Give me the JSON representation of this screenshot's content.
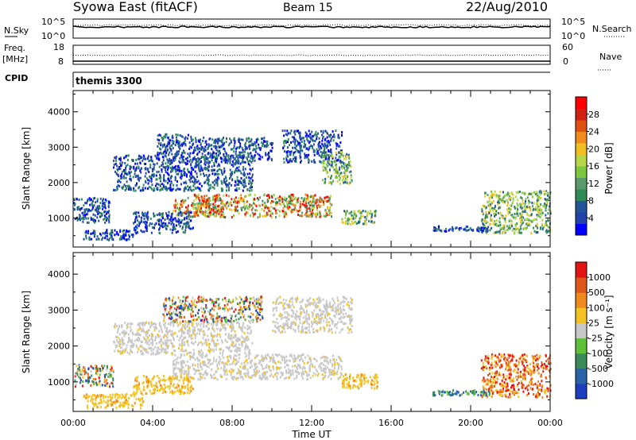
{
  "header": {
    "station": "Syowa East (fitACF)",
    "beam": "Beam 15",
    "date": "22/Aug/2010"
  },
  "status_panels": {
    "nsky_label": "N.Sky",
    "nsky_ticks": [
      "10^5",
      "10^0"
    ],
    "nsearch_label": "N.Search",
    "nsearch_ticks": [
      "10^5",
      "10^0"
    ],
    "freq_label_1": "Freq.",
    "freq_label_2": "[MHz]",
    "freq_ticks": [
      "18",
      "8"
    ],
    "nave_label": "Nave",
    "nave_ticks": [
      "60",
      "0"
    ],
    "cpid_label": "CPID",
    "cpid_value": "themis 3300"
  },
  "chart_data": [
    {
      "type": "heatmap",
      "name": "power",
      "ylabel": "Slant Range [km]",
      "yticks": [
        "4000",
        "3000",
        "2000",
        "1000"
      ],
      "ylim": [
        180,
        4600
      ],
      "xlabel": "Time UT",
      "xticks": [
        "00:00",
        "04:00",
        "08:00",
        "12:00",
        "16:00",
        "20:00",
        "00:00"
      ],
      "xlim_hours": [
        0,
        24
      ],
      "colorbar": {
        "label": "Power [dB]",
        "ticks": [
          "28",
          "24",
          "20",
          "16",
          "12",
          "8",
          "4"
        ],
        "colors": [
          "#0000ff",
          "#2244aa",
          "#22559a",
          "#2e8b57",
          "#5a9a6a",
          "#7cc840",
          "#b8d84a",
          "#f0c020",
          "#f08c1a",
          "#e05010",
          "#d02010",
          "#ff0000"
        ]
      },
      "regions": [
        {
          "t": [
            6.0,
            13.0
          ],
          "r": [
            1050,
            1700
          ],
          "color_bias": "high"
        },
        {
          "t": [
            5.0,
            7.5
          ],
          "r": [
            1100,
            1600
          ],
          "color_bias": "high"
        },
        {
          "t": [
            2.0,
            9.0
          ],
          "r": [
            1800,
            2800
          ],
          "color_bias": "low"
        },
        {
          "t": [
            4.2,
            6.0
          ],
          "r": [
            2800,
            3400
          ],
          "color_bias": "low"
        },
        {
          "t": [
            6.0,
            10.0
          ],
          "r": [
            2600,
            3300
          ],
          "color_bias": "low"
        },
        {
          "t": [
            10.5,
            13.5
          ],
          "r": [
            2600,
            3500
          ],
          "color_bias": "low"
        },
        {
          "t": [
            12.5,
            14.0
          ],
          "r": [
            2000,
            2900
          ],
          "color_bias": "mid"
        },
        {
          "t": [
            0.0,
            1.8
          ],
          "r": [
            900,
            1600
          ],
          "color_bias": "low"
        },
        {
          "t": [
            0.5,
            3.0
          ],
          "r": [
            400,
            700
          ],
          "color_bias": "low"
        },
        {
          "t": [
            3.0,
            6.0
          ],
          "r": [
            600,
            1200
          ],
          "color_bias": "low"
        },
        {
          "t": [
            13.5,
            15.2
          ],
          "r": [
            850,
            1250
          ],
          "color_bias": "mid"
        },
        {
          "t": [
            20.5,
            24.0
          ],
          "r": [
            600,
            1800
          ],
          "color_bias": "mid"
        },
        {
          "t": [
            18.0,
            21.0
          ],
          "r": [
            650,
            800
          ],
          "color_bias": "low"
        }
      ]
    },
    {
      "type": "heatmap",
      "name": "velocity",
      "ylabel": "Slant Range [km]",
      "yticks": [
        "4000",
        "3000",
        "2000",
        "1000"
      ],
      "ylim": [
        180,
        4600
      ],
      "xlabel": "Time UT",
      "xticks": [
        "00:00",
        "04:00",
        "08:00",
        "12:00",
        "16:00",
        "20:00",
        "00:00"
      ],
      "xlim_hours": [
        0,
        24
      ],
      "colorbar": {
        "label": "Velocity [m s⁻¹]",
        "ticks": [
          "1000",
          "500",
          "100",
          "25",
          "-25",
          "-100",
          "-500",
          "-1000"
        ],
        "colors": [
          "#1d3fbf",
          "#2a62a8",
          "#3a8a5a",
          "#5fc03a",
          "#c8c8c8",
          "#f3c323",
          "#f08a1c",
          "#e0571a",
          "#e21414"
        ]
      },
      "regions": [
        {
          "t": [
            5.0,
            13.5
          ],
          "r": [
            1100,
            1800
          ],
          "color_bias": "gray"
        },
        {
          "t": [
            2.0,
            9.0
          ],
          "r": [
            1800,
            2700
          ],
          "color_bias": "gray"
        },
        {
          "t": [
            4.5,
            9.5
          ],
          "r": [
            2700,
            3400
          ],
          "color_bias": "mix"
        },
        {
          "t": [
            10.0,
            14.0
          ],
          "r": [
            2400,
            3400
          ],
          "color_bias": "gray"
        },
        {
          "t": [
            0.5,
            3.5
          ],
          "r": [
            300,
            700
          ],
          "color_bias": "yellow"
        },
        {
          "t": [
            3.0,
            6.0
          ],
          "r": [
            700,
            1200
          ],
          "color_bias": "yellow"
        },
        {
          "t": [
            13.5,
            15.3
          ],
          "r": [
            850,
            1250
          ],
          "color_bias": "yellow"
        },
        {
          "t": [
            0.0,
            2.0
          ],
          "r": [
            900,
            1500
          ],
          "color_bias": "mix"
        },
        {
          "t": [
            20.5,
            24.0
          ],
          "r": [
            600,
            1800
          ],
          "color_bias": "orange"
        },
        {
          "t": [
            18.0,
            21.0
          ],
          "r": [
            650,
            800
          ],
          "color_bias": "green"
        }
      ]
    }
  ]
}
